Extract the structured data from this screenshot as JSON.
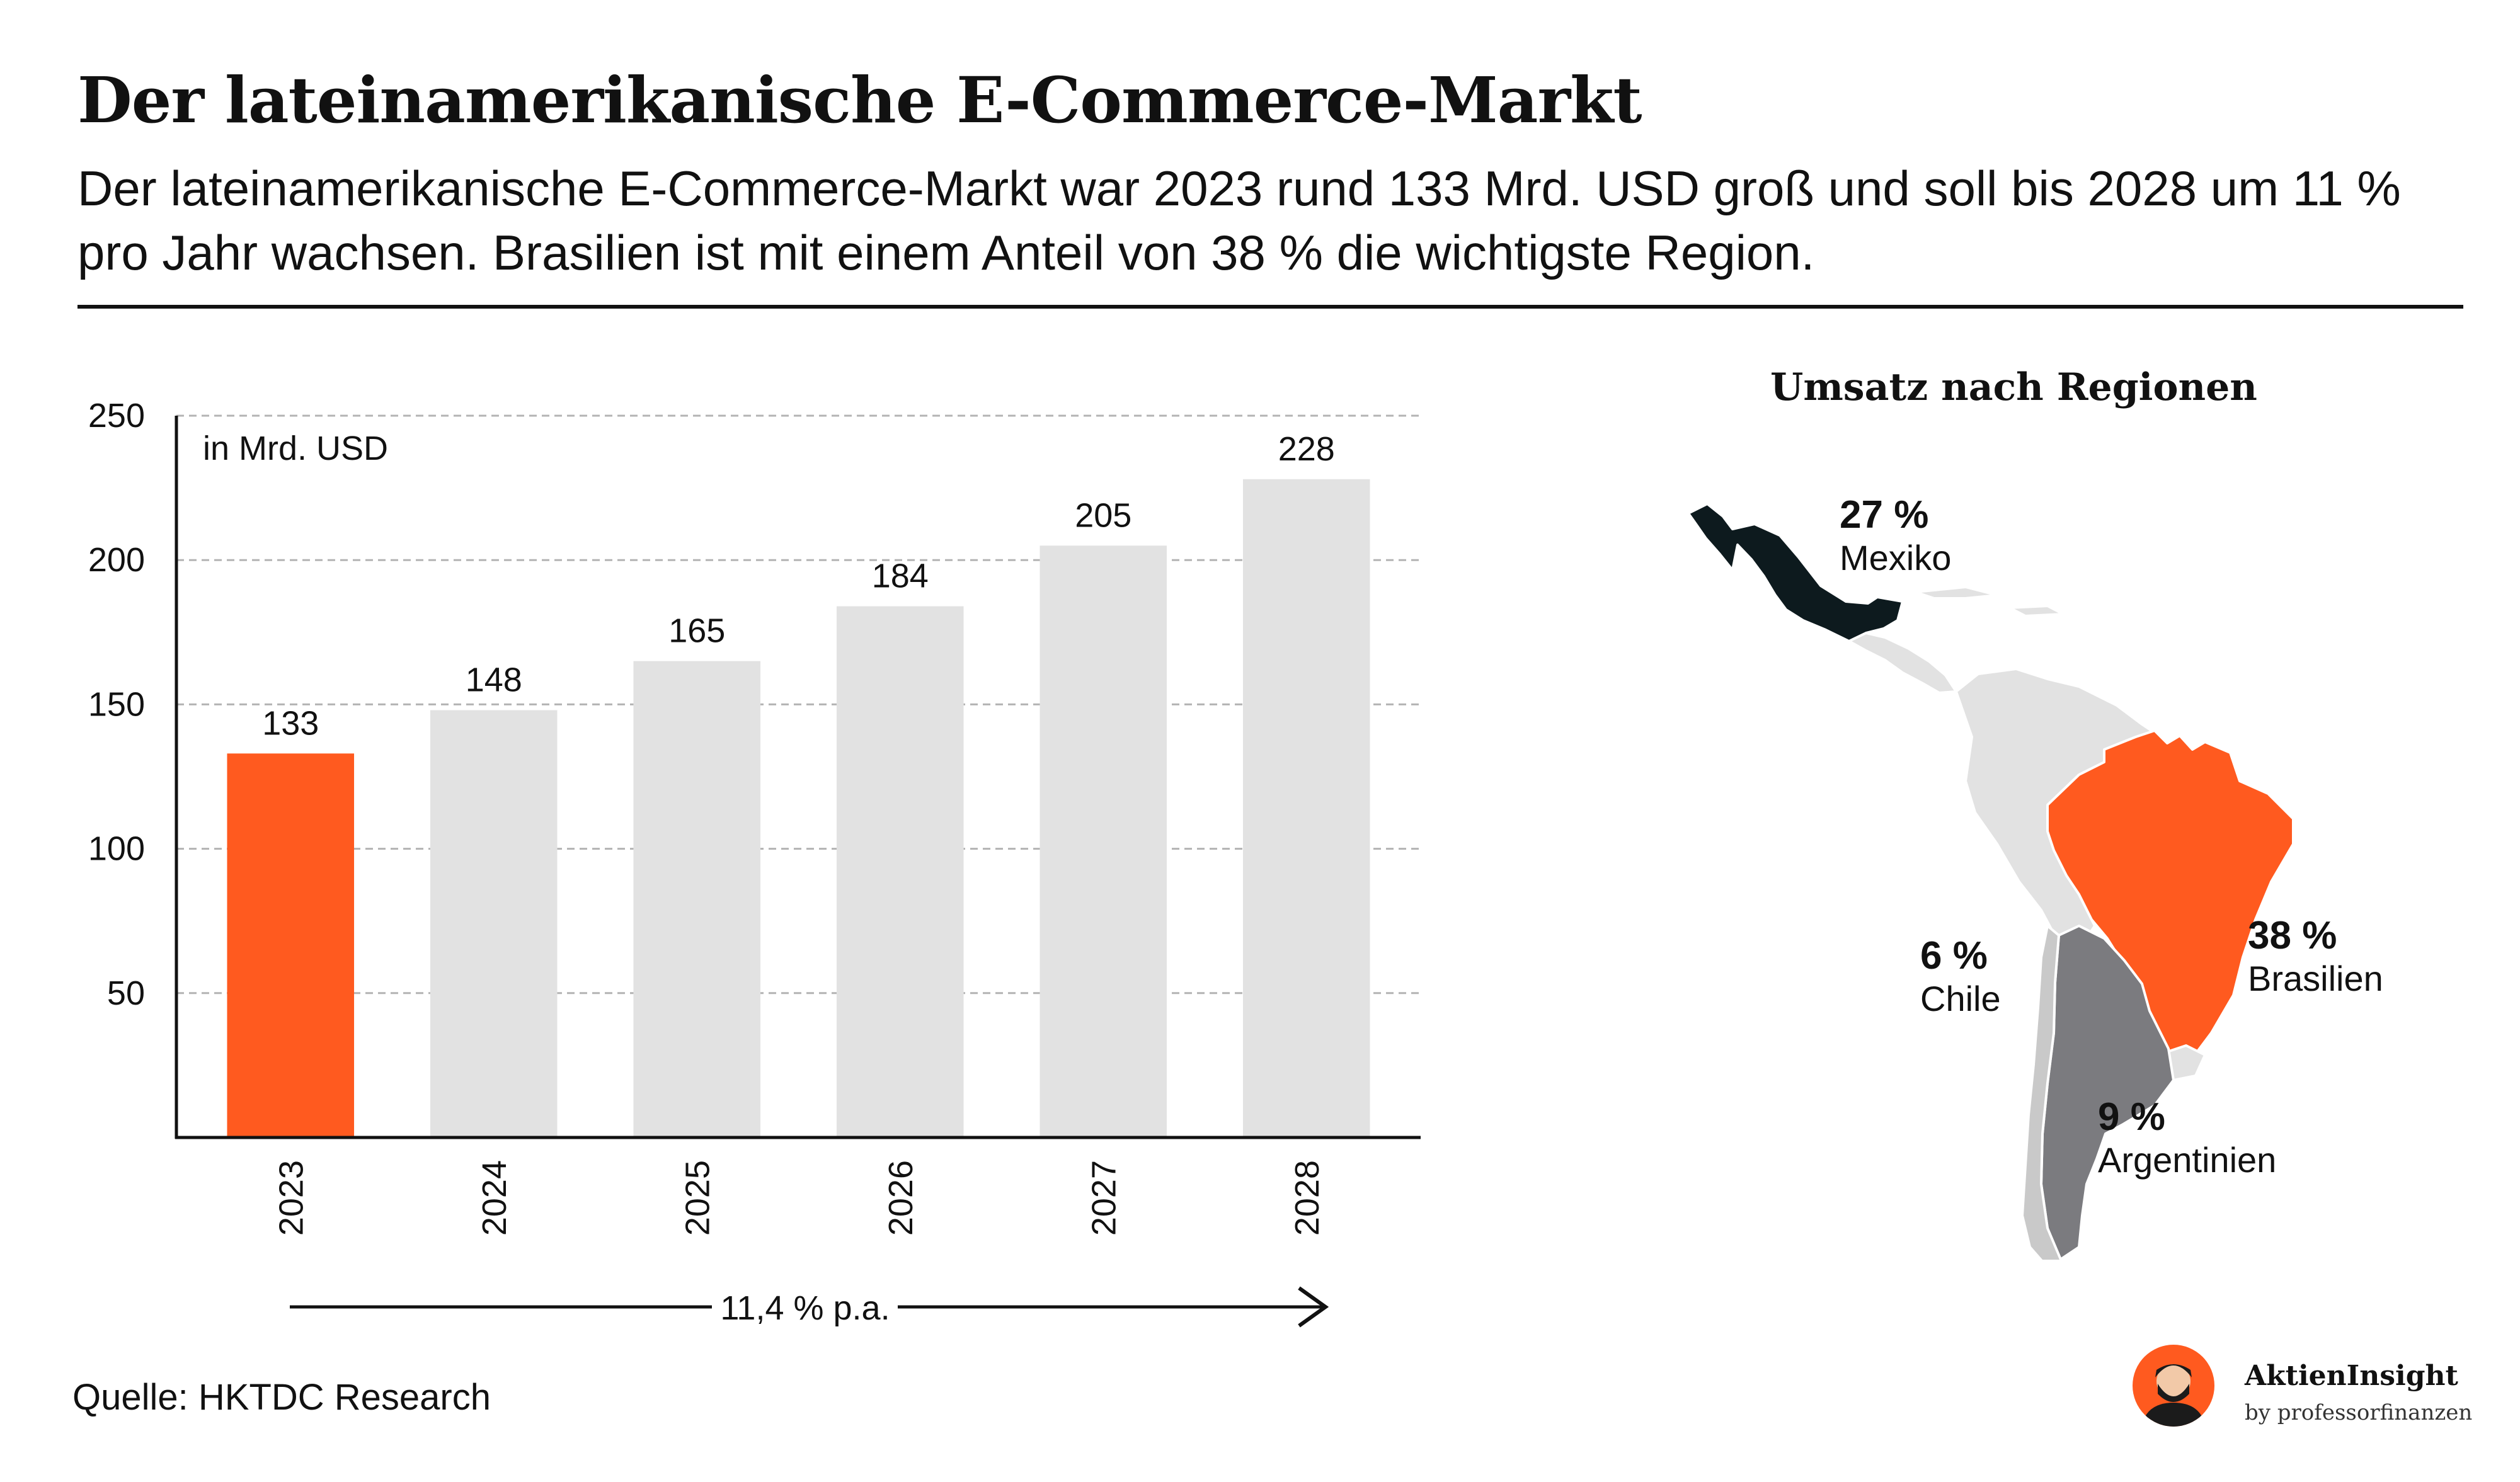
{
  "header": {
    "title": "Der lateinamerikanische E-Commerce-Markt",
    "subtitle": "Der lateinamerikanische E-Commerce-Markt war 2023 rund 133 Mrd. USD groß und soll bis 2028 um 11 % pro Jahr wachsen. Brasilien ist mit einem Anteil von 38 % die wichtigste Region."
  },
  "chart_data": {
    "type": "bar",
    "categories": [
      "2023",
      "2024",
      "2025",
      "2026",
      "2027",
      "2028"
    ],
    "values": [
      133,
      148,
      165,
      184,
      205,
      228
    ],
    "unit_label": "in Mrd. USD",
    "ylim": [
      0,
      250
    ],
    "yticks": [
      50,
      100,
      150,
      200,
      250
    ],
    "grid": true,
    "highlight_index": 0,
    "colors": {
      "highlight": "#ff5a1f",
      "default": "#e2e2e2"
    },
    "annotation": "11,4 % p.a."
  },
  "map": {
    "title": "Umsatz nach Regionen",
    "regions": [
      {
        "pct": "27 %",
        "name": "Mexiko",
        "color": "#0d1a1e"
      },
      {
        "pct": "38 %",
        "name": "Brasilien",
        "color": "#ff5a1f"
      },
      {
        "pct": "6 %",
        "name": "Chile",
        "color": "#c9c9c9"
      },
      {
        "pct": "9 %",
        "name": "Argentinien",
        "color": "#7b7b7f"
      }
    ],
    "other_color": "#e2e2e2"
  },
  "footer": {
    "source": "Quelle: HKTDC Research",
    "brand_name": "AktienInsight",
    "brand_sub": "by professorfinanzen"
  }
}
